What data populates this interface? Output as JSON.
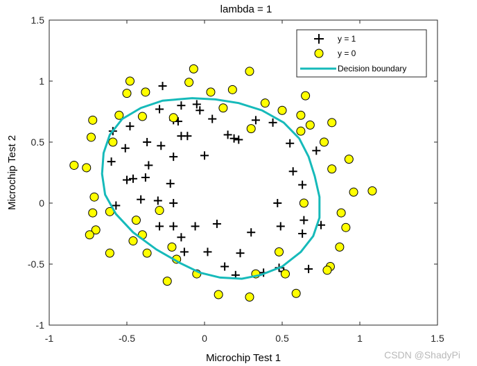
{
  "chart_data": {
    "type": "scatter",
    "title": "lambda = 1",
    "xlabel": "Microchip Test 1",
    "ylabel": "Microchip Test 2",
    "xlim": [
      -1,
      1.5
    ],
    "ylim": [
      -1,
      1.5
    ],
    "x_ticks": [
      -1,
      -0.5,
      0,
      0.5,
      1,
      1.5
    ],
    "y_ticks": [
      -1,
      -0.5,
      0,
      0.5,
      1,
      1.5
    ],
    "x_tick_labels": [
      "-1",
      "-0.5",
      "0",
      "0.5",
      "1",
      "1.5"
    ],
    "y_tick_labels": [
      "-1",
      "-0.5",
      "0",
      "0.5",
      "1",
      "1.5"
    ],
    "grid": false,
    "legend_position": "top-right",
    "legend": [
      {
        "label": "y = 1",
        "marker": "plus"
      },
      {
        "label": "y = 0",
        "marker": "circle"
      },
      {
        "label": "Decision boundary",
        "marker": "line"
      }
    ],
    "series": [
      {
        "name": "y = 1",
        "marker": "plus",
        "color": "#000000",
        "points": [
          [
            -0.27,
            0.96
          ],
          [
            -0.29,
            0.77
          ],
          [
            -0.15,
            0.8
          ],
          [
            -0.05,
            0.81
          ],
          [
            -0.2,
            0.68
          ],
          [
            -0.17,
            0.67
          ],
          [
            -0.15,
            0.55
          ],
          [
            -0.11,
            0.55
          ],
          [
            -0.03,
            0.76
          ],
          [
            0.05,
            0.69
          ],
          [
            0.15,
            0.56
          ],
          [
            0.19,
            0.53
          ],
          [
            0.22,
            0.52
          ],
          [
            0.33,
            0.68
          ],
          [
            0.44,
            0.66
          ],
          [
            0.55,
            0.49
          ],
          [
            0.57,
            0.26
          ],
          [
            0.63,
            0.15
          ],
          [
            0.72,
            0.43
          ],
          [
            0.47,
            0.0
          ],
          [
            0.49,
            -0.19
          ],
          [
            0.64,
            -0.14
          ],
          [
            0.63,
            -0.25
          ],
          [
            0.75,
            -0.18
          ],
          [
            0.67,
            -0.54
          ],
          [
            0.48,
            -0.53
          ],
          [
            0.51,
            -0.56
          ],
          [
            0.38,
            -0.57
          ],
          [
            0.3,
            -0.24
          ],
          [
            0.23,
            -0.41
          ],
          [
            0.2,
            -0.59
          ],
          [
            0.13,
            -0.52
          ],
          [
            0.08,
            -0.17
          ],
          [
            0.02,
            -0.4
          ],
          [
            -0.06,
            -0.19
          ],
          [
            -0.15,
            -0.28
          ],
          [
            -0.13,
            -0.4
          ],
          [
            -0.2,
            -0.19
          ],
          [
            -0.29,
            -0.19
          ],
          [
            -0.3,
            0.02
          ],
          [
            -0.2,
            0.0
          ],
          [
            -0.22,
            0.16
          ],
          [
            -0.2,
            0.38
          ],
          [
            -0.36,
            0.31
          ],
          [
            -0.38,
            0.21
          ],
          [
            -0.46,
            0.2
          ],
          [
            -0.5,
            0.19
          ],
          [
            -0.41,
            0.03
          ],
          [
            -0.6,
            0.34
          ],
          [
            -0.59,
            0.59
          ],
          [
            -0.48,
            0.63
          ],
          [
            -0.51,
            0.45
          ],
          [
            -0.37,
            0.5
          ],
          [
            -0.28,
            0.47
          ],
          [
            -0.57,
            -0.02
          ],
          [
            0.0,
            0.39
          ]
        ]
      },
      {
        "name": "y = 0",
        "marker": "circle",
        "color": "#ffff00",
        "points": [
          [
            -0.1,
            0.99
          ],
          [
            -0.07,
            1.1
          ],
          [
            -0.48,
            1.0
          ],
          [
            -0.5,
            0.9
          ],
          [
            -0.38,
            0.91
          ],
          [
            0.04,
            0.91
          ],
          [
            0.18,
            0.93
          ],
          [
            0.29,
            1.08
          ],
          [
            0.39,
            0.82
          ],
          [
            0.5,
            0.76
          ],
          [
            0.62,
            0.72
          ],
          [
            0.65,
            0.88
          ],
          [
            0.68,
            0.64
          ],
          [
            0.77,
            0.5
          ],
          [
            0.82,
            0.66
          ],
          [
            0.82,
            0.28
          ],
          [
            0.93,
            0.36
          ],
          [
            0.96,
            0.09
          ],
          [
            1.08,
            0.1
          ],
          [
            0.64,
            0.0
          ],
          [
            0.88,
            -0.08
          ],
          [
            0.91,
            -0.2
          ],
          [
            0.87,
            -0.36
          ],
          [
            0.81,
            -0.52
          ],
          [
            0.79,
            -0.55
          ],
          [
            0.52,
            -0.58
          ],
          [
            0.48,
            -0.4
          ],
          [
            0.59,
            -0.74
          ],
          [
            0.29,
            -0.77
          ],
          [
            0.09,
            -0.75
          ],
          [
            0.33,
            -0.58
          ],
          [
            -0.05,
            -0.58
          ],
          [
            -0.24,
            -0.64
          ],
          [
            -0.18,
            -0.46
          ],
          [
            -0.21,
            -0.36
          ],
          [
            -0.37,
            -0.41
          ],
          [
            -0.4,
            -0.26
          ],
          [
            -0.46,
            -0.31
          ],
          [
            -0.44,
            -0.14
          ],
          [
            -0.61,
            -0.41
          ],
          [
            -0.61,
            -0.07
          ],
          [
            -0.7,
            -0.22
          ],
          [
            -0.74,
            -0.26
          ],
          [
            -0.72,
            -0.08
          ],
          [
            -0.71,
            0.05
          ],
          [
            -0.76,
            0.29
          ],
          [
            -0.84,
            0.31
          ],
          [
            -0.73,
            0.54
          ],
          [
            -0.72,
            0.68
          ],
          [
            -0.55,
            0.72
          ],
          [
            -0.59,
            0.5
          ],
          [
            -0.4,
            0.71
          ],
          [
            -0.29,
            -0.06
          ],
          [
            0.12,
            0.78
          ],
          [
            0.3,
            0.61
          ],
          [
            0.62,
            0.59
          ],
          [
            -0.2,
            0.7
          ]
        ]
      }
    ],
    "decision_boundary": {
      "name": "Decision boundary",
      "color": "#16baba",
      "points": [
        [
          -0.08,
          0.86
        ],
        [
          0.07,
          0.85
        ],
        [
          0.22,
          0.82
        ],
        [
          0.37,
          0.76
        ],
        [
          0.51,
          0.66
        ],
        [
          0.61,
          0.53
        ],
        [
          0.67,
          0.38
        ],
        [
          0.71,
          0.22
        ],
        [
          0.74,
          0.05
        ],
        [
          0.74,
          -0.12
        ],
        [
          0.7,
          -0.27
        ],
        [
          0.62,
          -0.4
        ],
        [
          0.5,
          -0.52
        ],
        [
          0.36,
          -0.59
        ],
        [
          0.24,
          -0.62
        ],
        [
          0.1,
          -0.61
        ],
        [
          -0.03,
          -0.57
        ],
        [
          -0.16,
          -0.49
        ],
        [
          -0.31,
          -0.38
        ],
        [
          -0.46,
          -0.24
        ],
        [
          -0.57,
          -0.09
        ],
        [
          -0.64,
          0.07
        ],
        [
          -0.66,
          0.24
        ],
        [
          -0.65,
          0.41
        ],
        [
          -0.61,
          0.56
        ],
        [
          -0.53,
          0.69
        ],
        [
          -0.41,
          0.78
        ],
        [
          -0.27,
          0.84
        ],
        [
          -0.08,
          0.86
        ]
      ]
    }
  },
  "watermark": "CSDN @ShadyPi"
}
